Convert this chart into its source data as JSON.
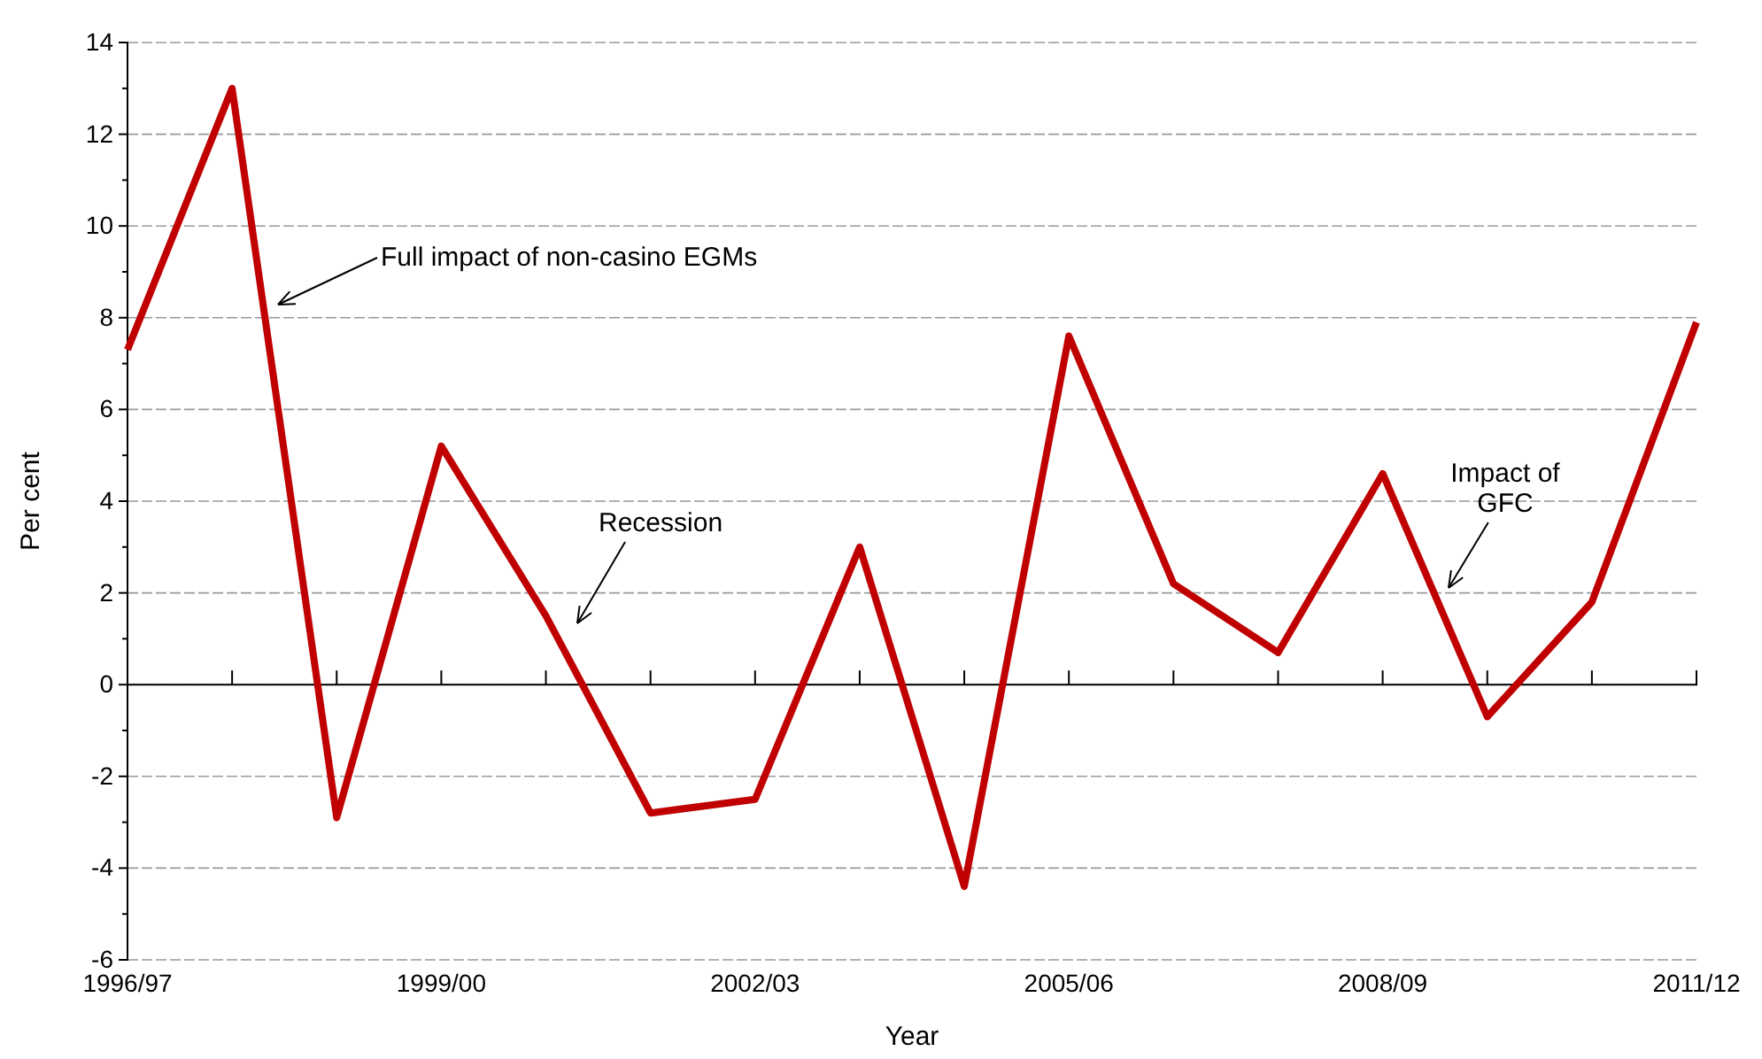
{
  "chart_data": {
    "type": "line",
    "xlabel": "Year",
    "ylabel": "Per cent",
    "categories": [
      "1996/97",
      null,
      null,
      "1999/00",
      null,
      null,
      "2002/03",
      null,
      null,
      "2005/06",
      null,
      null,
      "2008/09",
      null,
      null,
      "2011/12"
    ],
    "series": [
      {
        "color": "#c00000",
        "values": [
          7.3,
          13.0,
          -2.9,
          5.2,
          1.5,
          -2.8,
          -2.5,
          3.0,
          -4.4,
          7.6,
          2.2,
          0.7,
          4.6,
          -0.7,
          1.8,
          7.9
        ]
      }
    ],
    "ylim": [
      -6,
      14
    ],
    "yticks": [
      -6,
      -4,
      -2,
      0,
      2,
      4,
      6,
      8,
      10,
      12,
      14
    ],
    "grid": "y",
    "marker": "none",
    "line_style": "solid",
    "annotations": [
      "Full impact of non-casino EGMs",
      "Recession",
      "Impact of GFC"
    ]
  }
}
